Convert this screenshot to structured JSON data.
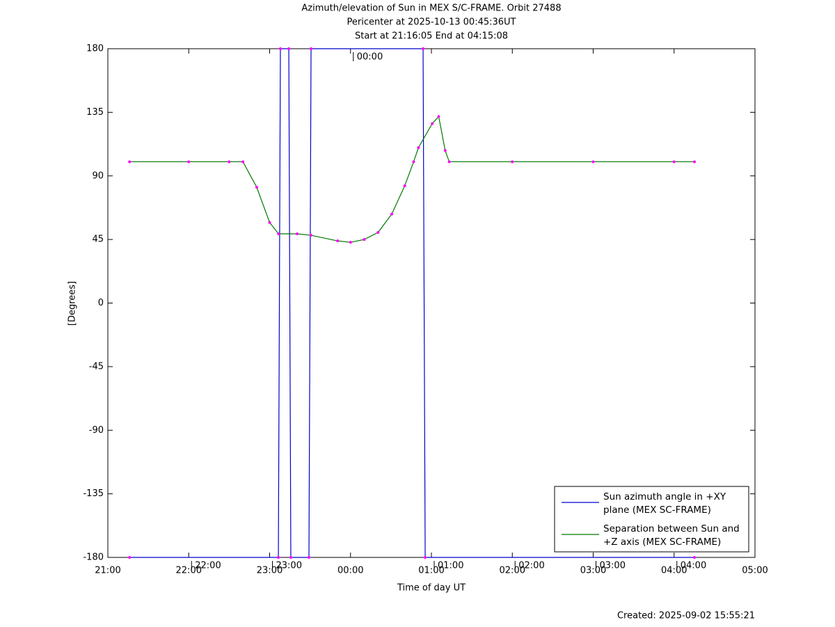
{
  "chart_data": {
    "type": "line",
    "title": [
      "Azimuth/elevation of Sun in MEX S/C-FRAME.  Orbit 27488",
      "Pericenter at 2025-10-13 00:45:36UT",
      "Start at 21:16:05 End at 04:15:08"
    ],
    "xlabel": "Time of day UT",
    "ylabel": "[Degrees]",
    "footer": "Created: 2025-09-02 15:55:21",
    "xlim": [
      21,
      29
    ],
    "xticks": [
      {
        "value": 21,
        "label": "21:00"
      },
      {
        "value": 22,
        "label": "22:00"
      },
      {
        "value": 23,
        "label": "23:00"
      },
      {
        "value": 24,
        "label": "00:00"
      },
      {
        "value": 25,
        "label": "01:00"
      },
      {
        "value": 26,
        "label": "02:00"
      },
      {
        "value": 27,
        "label": "03:00"
      },
      {
        "value": 28,
        "label": "04:00"
      },
      {
        "value": 29,
        "label": "05:00"
      }
    ],
    "ylim": [
      -180,
      180
    ],
    "yticks": [
      180,
      135,
      90,
      45,
      0,
      -45,
      -90,
      -135,
      -180
    ],
    "marker_color": "#ff00ff",
    "legend": "lower right",
    "series": [
      {
        "name": "Sun azimuth angle in +XY plane (MEX SC-FRAME)",
        "color": "#0000cc",
        "x": [
          21.268,
          23.108,
          23.133,
          23.237,
          23.262,
          23.486,
          23.512,
          24.897,
          24.923,
          28.252
        ],
        "values": [
          -180,
          -180,
          180,
          180,
          -180,
          -180,
          180,
          180,
          -180,
          -180
        ]
      },
      {
        "name": "Separation between Sun and +Z axis (MEX SC-FRAME)",
        "color": "#007700",
        "x": [
          21.268,
          22.0,
          22.5,
          22.67,
          22.84,
          23.0,
          23.11,
          23.34,
          23.51,
          23.84,
          24.0,
          24.17,
          24.34,
          24.51,
          24.67,
          24.78,
          24.84,
          25.01,
          25.09,
          25.17,
          25.22,
          26.0,
          27.0,
          28.0,
          28.252
        ],
        "values": [
          100,
          100,
          100,
          100,
          82,
          57,
          49,
          49,
          48,
          44,
          43,
          45,
          50,
          63,
          83,
          100,
          110,
          127,
          132,
          108,
          100,
          100,
          100,
          100,
          100
        ]
      }
    ],
    "annotations": [
      {
        "text": "00:00",
        "x": 24,
        "y": 180
      },
      {
        "text": "22:00",
        "x": 22,
        "y": -180
      },
      {
        "text": "23:00",
        "x": 23,
        "y": -180
      },
      {
        "text": "01:00",
        "x": 25,
        "y": -180
      },
      {
        "text": "02:00",
        "x": 26,
        "y": -180
      },
      {
        "text": "03:00",
        "x": 27,
        "y": -180
      },
      {
        "text": "04:00",
        "x": 28,
        "y": -180
      }
    ]
  }
}
